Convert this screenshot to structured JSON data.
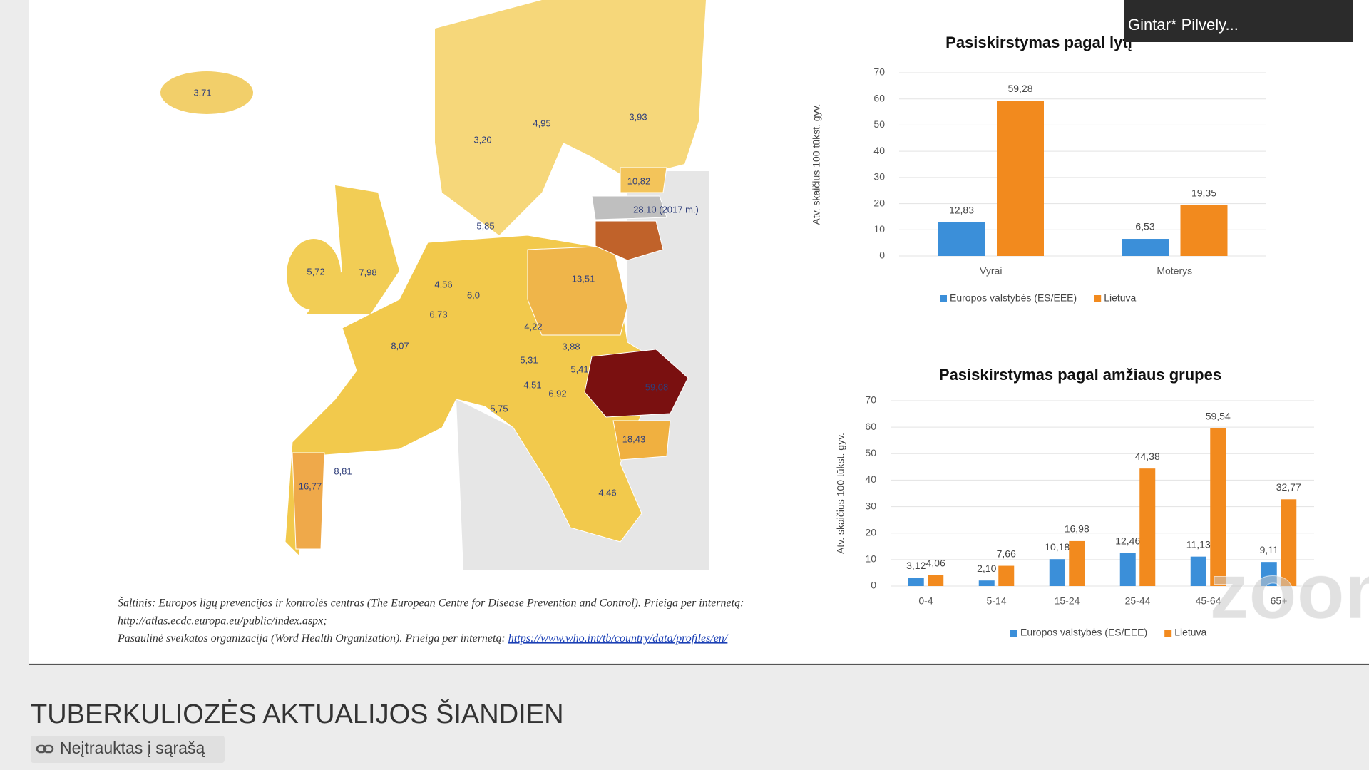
{
  "chart_data": [
    {
      "type": "bar",
      "title": "Pasiskirstymas pagal lytį",
      "ylabel": "Atv. skaičius 100 tūkst. gyv.",
      "categories": [
        "Vyrai",
        "Moterys"
      ],
      "series": [
        {
          "name": "Europos valstybės (ES/EEE)",
          "color": "#3b8fd9",
          "values": [
            12.83,
            6.53
          ],
          "value_labels": [
            "12,83",
            "6,53"
          ]
        },
        {
          "name": "Lietuva",
          "color": "#f28a1e",
          "values": [
            59.28,
            19.35
          ],
          "value_labels": [
            "59,28",
            "19,35"
          ]
        }
      ],
      "ylim": [
        0,
        70
      ],
      "yticks": [
        0,
        10,
        20,
        30,
        40,
        50,
        60,
        70
      ],
      "grid": true
    },
    {
      "type": "bar",
      "title": "Pasiskirstymas pagal amžiaus grupes",
      "ylabel": "Atv. skaičius 100 tūkst. gyv.",
      "categories": [
        "0-4",
        "5-14",
        "15-24",
        "25-44",
        "45-64",
        "65+"
      ],
      "series": [
        {
          "name": "Europos valstybės (ES/EEE)",
          "color": "#3b8fd9",
          "values": [
            3.12,
            2.1,
            10.18,
            12.46,
            11.13,
            9.11
          ],
          "value_labels": [
            "3,12",
            "2,10",
            "10,18",
            "12,46",
            "11,13",
            "9,11"
          ]
        },
        {
          "name": "Lietuva",
          "color": "#f28a1e",
          "values": [
            4.06,
            7.66,
            16.98,
            44.38,
            59.54,
            32.77
          ],
          "value_labels": [
            "4,06",
            "7,66",
            "16,98",
            "44,38",
            "59,54",
            "32,77"
          ]
        }
      ],
      "ylim": [
        0,
        70
      ],
      "yticks": [
        0,
        10,
        20,
        30,
        40,
        50,
        60,
        70
      ],
      "grid": true
    }
  ],
  "map": {
    "labels": [
      "3,71",
      "3,20",
      "4,95",
      "3,93",
      "10,82",
      "28,10 (2017 m.)",
      "5,85",
      "5,72",
      "7,98",
      "4,56",
      "6,73",
      "6,0",
      "13,51",
      "8,07",
      "4,22",
      "3,88",
      "5,31",
      "5,41",
      "4,51",
      "6,92",
      "59,08",
      "5,75",
      "18,43",
      "8,81",
      "16,77",
      "4,46"
    ]
  },
  "source": {
    "lines": [
      "Šaltinis: Europos ligų prevencijos ir kontrolės centras (The European Centre for Disease Prevention and Control). Prieiga per internetą:",
      "http://atlas.ecdc.europa.eu/public/index.aspx;",
      "Pasaulinė sveikatos organizacija (Word Health Organization). Prieiga per internetą: "
    ],
    "link": "https://www.who.int/tb/country/data/profiles/en/"
  },
  "participant": "Gintar* Pilvely...",
  "watermark": "zoom",
  "video": {
    "title": "TUBERKULIOZĖS AKTUALIJOS ŠIANDIEN",
    "status": "Neįtrauktas į sąrašą"
  }
}
